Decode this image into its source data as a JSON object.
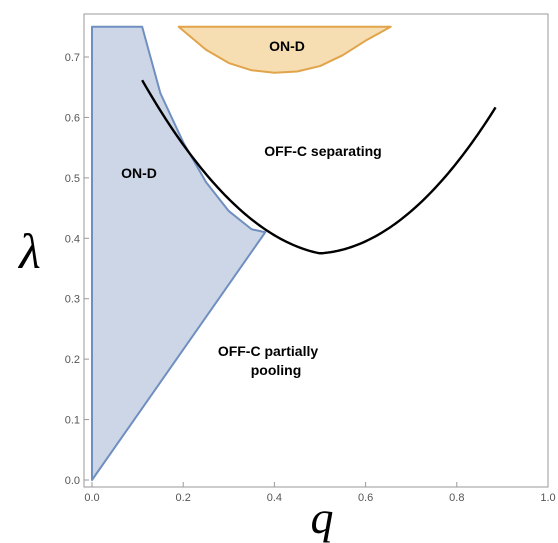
{
  "chart_data": {
    "type": "area",
    "title": "",
    "xlabel": "q",
    "ylabel": "λ",
    "xlim": [
      0,
      1.0
    ],
    "ylim": [
      0,
      0.75
    ],
    "x_ticks": [
      "0.0",
      "0.2",
      "0.4",
      "0.6",
      "0.8",
      "1.0"
    ],
    "y_ticks": [
      "0.0",
      "0.1",
      "0.2",
      "0.3",
      "0.4",
      "0.5",
      "0.6",
      "0.7"
    ],
    "grid": false,
    "boundary_curve": {
      "description": "lambda = 0.375 + 1.5 * (q - 0.5)^2",
      "x": [
        0.11,
        0.15,
        0.2,
        0.25,
        0.3,
        0.35,
        0.38,
        0.4,
        0.45,
        0.5,
        0.55,
        0.6,
        0.65,
        0.7,
        0.75,
        0.8,
        0.85,
        0.885
      ],
      "y": [
        0.603,
        0.559,
        0.51,
        0.469,
        0.435,
        0.409,
        0.397,
        0.39,
        0.379,
        0.375,
        0.379,
        0.39,
        0.409,
        0.435,
        0.469,
        0.51,
        0.559,
        0.597
      ]
    },
    "regions": [
      {
        "label": "ON-D",
        "color": "#cdd6e6",
        "edge_color": "#6f8fc0",
        "polygon": [
          [
            0,
            0
          ],
          [
            0,
            0.75
          ],
          [
            0.11,
            0.75
          ],
          [
            0.15,
            0.64
          ],
          [
            0.2,
            0.559
          ],
          [
            0.25,
            0.493
          ],
          [
            0.3,
            0.445
          ],
          [
            0.35,
            0.415
          ],
          [
            0.38,
            0.41
          ],
          [
            0,
            0
          ]
        ]
      },
      {
        "label": "ON-D",
        "color": "#f6ddb2",
        "edge_color": "#e1a44a",
        "polygon": [
          [
            0.19,
            0.75
          ],
          [
            0.25,
            0.712
          ],
          [
            0.3,
            0.69
          ],
          [
            0.35,
            0.678
          ],
          [
            0.4,
            0.674
          ],
          [
            0.45,
            0.676
          ],
          [
            0.5,
            0.685
          ],
          [
            0.55,
            0.703
          ],
          [
            0.6,
            0.727
          ],
          [
            0.655,
            0.75
          ],
          [
            0.19,
            0.75
          ]
        ]
      }
    ],
    "region_labels": {
      "on_d_left": "ON-D",
      "on_d_top": "ON-D",
      "off_c_separating": "OFF-C separating",
      "off_c_pooling_line1": "OFF-C partially",
      "off_c_pooling_line2": "pooling"
    }
  }
}
